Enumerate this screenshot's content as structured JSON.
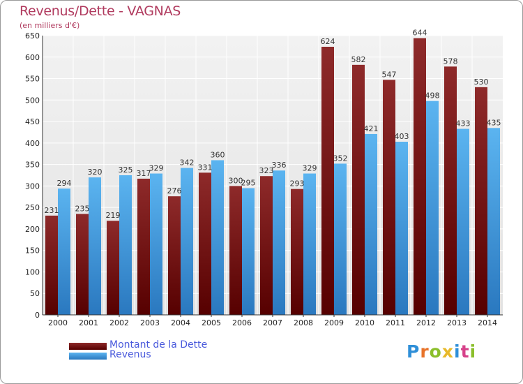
{
  "chart_data": {
    "type": "bar",
    "title": "Revenus/Dette - VAGNAS",
    "subtitle": "(en milliers d'€)",
    "categories": [
      "2000",
      "2001",
      "2002",
      "2003",
      "2004",
      "2005",
      "2006",
      "2007",
      "2008",
      "2009",
      "2010",
      "2011",
      "2012",
      "2013",
      "2014"
    ],
    "series": [
      {
        "name": "Montant de la Dette",
        "color": "#7a1818",
        "values": [
          231,
          235,
          219,
          317,
          276,
          331,
          300,
          323,
          293,
          624,
          582,
          547,
          644,
          578,
          530
        ]
      },
      {
        "name": "Revenus",
        "color": "#4aa3e6",
        "values": [
          294,
          320,
          325,
          329,
          342,
          360,
          295,
          336,
          329,
          352,
          421,
          403,
          498,
          433,
          435
        ]
      }
    ],
    "ylim": [
      0,
      650
    ],
    "yticks": [
      0,
      50,
      100,
      150,
      200,
      250,
      300,
      350,
      400,
      450,
      500,
      550,
      600,
      650
    ],
    "grid": true,
    "legend_position": "bottom-left"
  },
  "logo": {
    "text": "Proxiti",
    "colors": [
      "#2f8fd8",
      "#e8732a",
      "#8bbf2b",
      "#e8b92a",
      "#2f8fd8",
      "#d6418a",
      "#8bbf2b"
    ]
  }
}
